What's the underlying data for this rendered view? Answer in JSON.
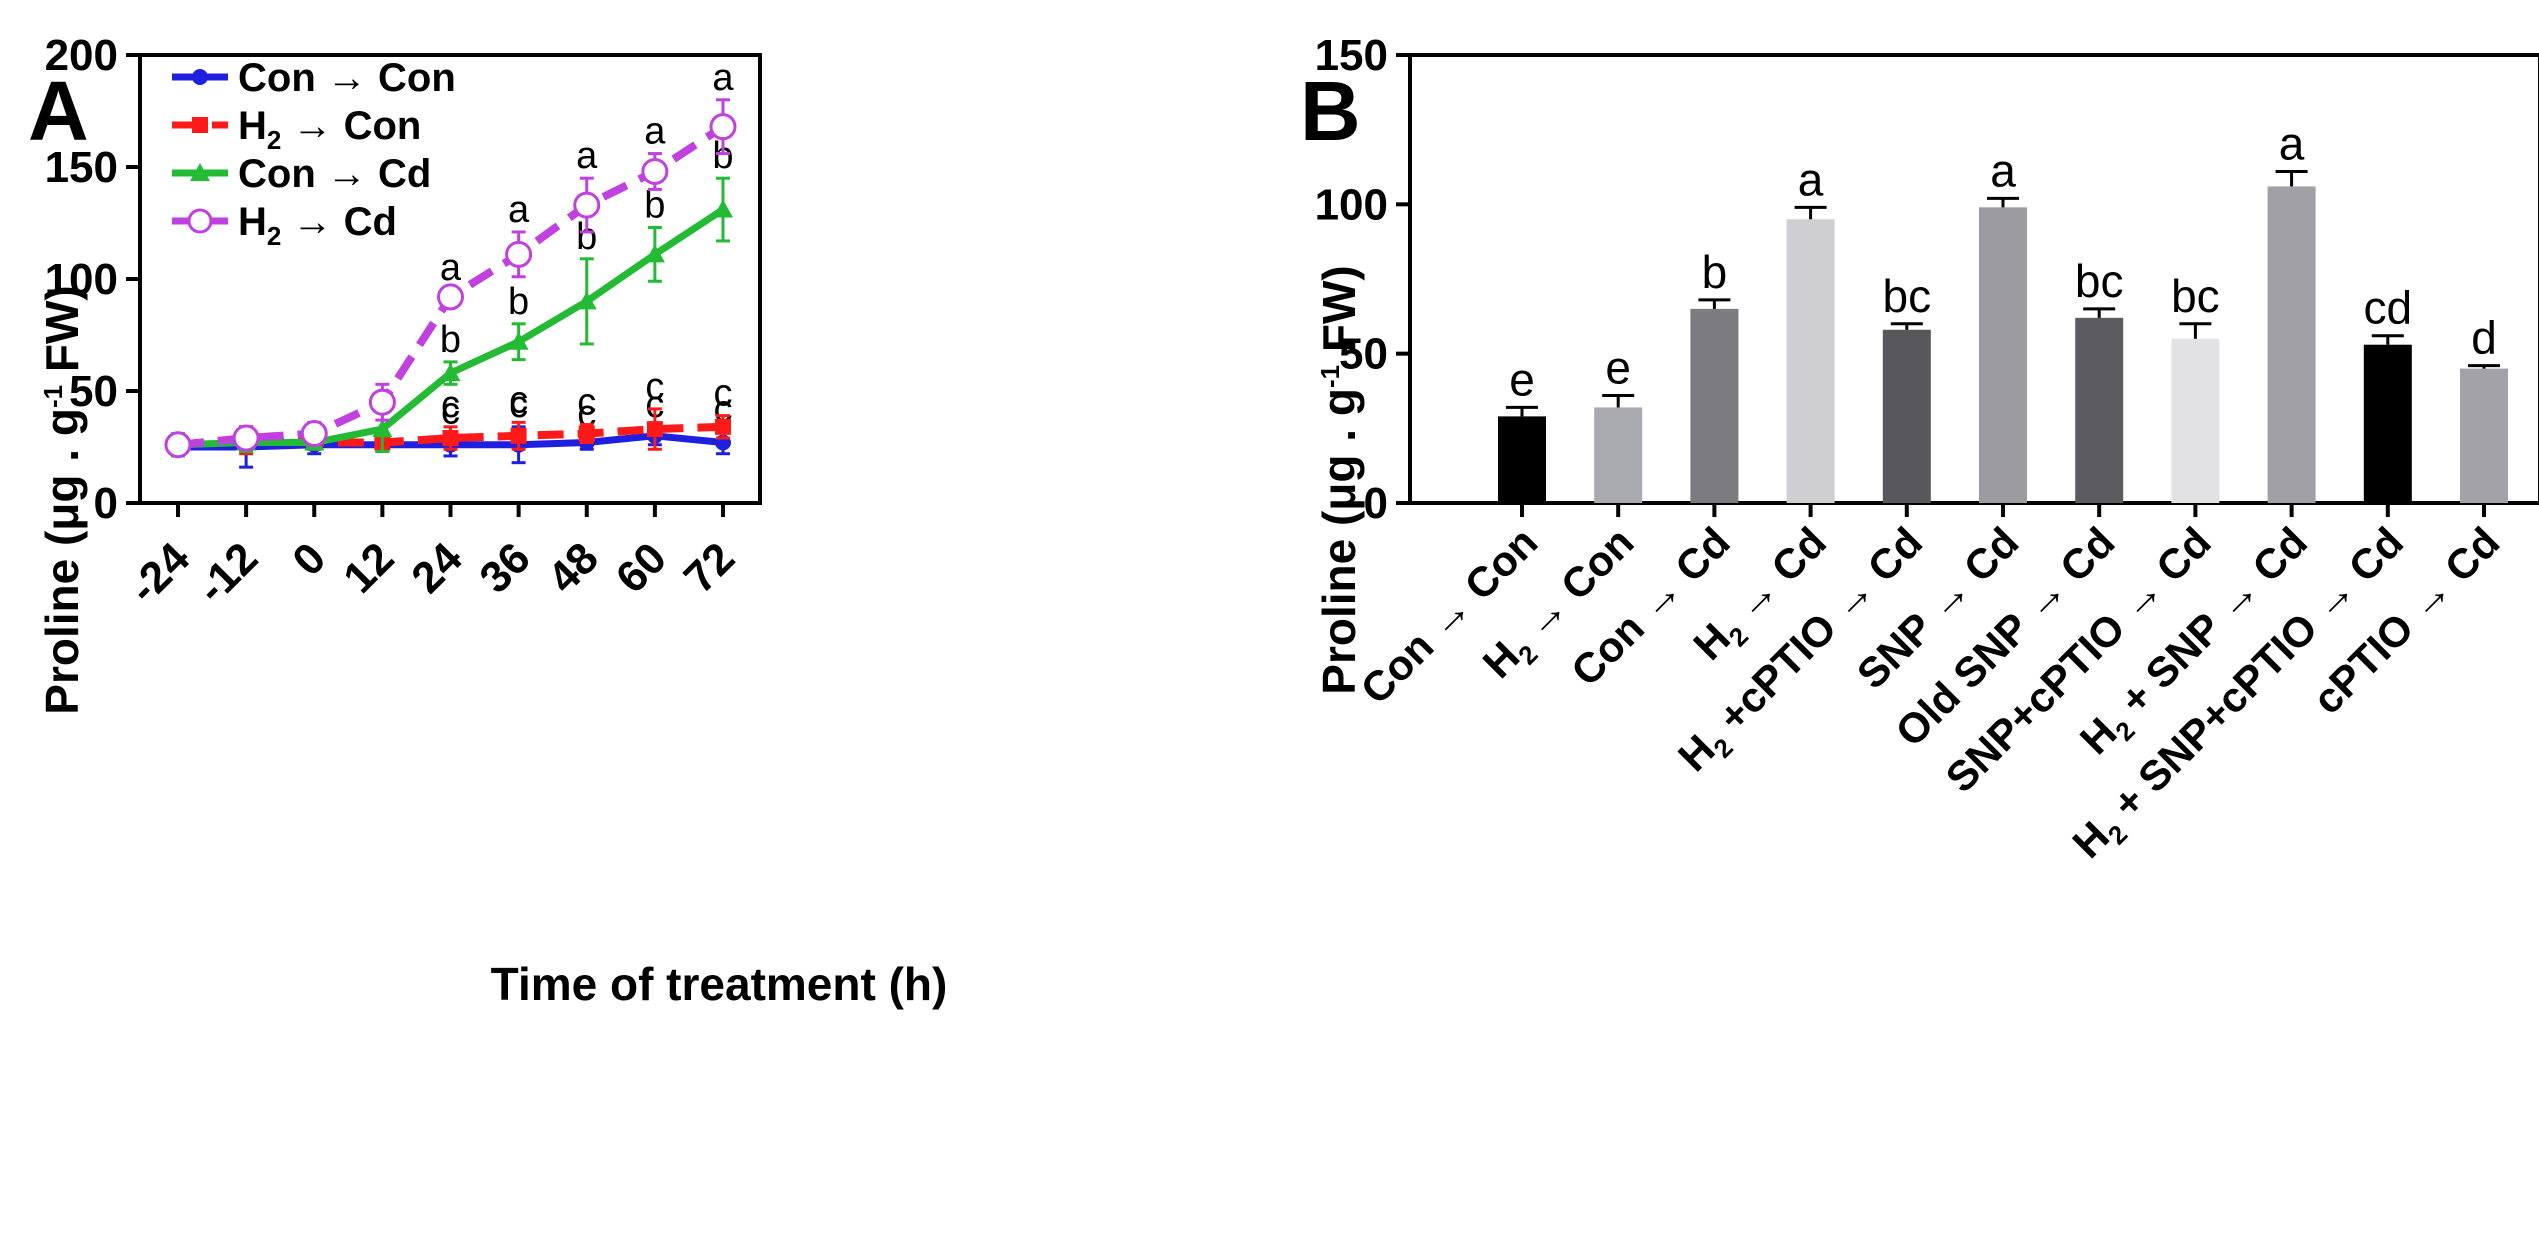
{
  "panel_a": {
    "letter": "A",
    "arrow": "→",
    "legend": [
      {
        "label_parts": [
          "Con",
          "→",
          "Con"
        ]
      },
      {
        "label_parts": [
          "H",
          "2",
          "→",
          "Con"
        ]
      },
      {
        "label_parts": [
          "Con",
          "→",
          "Cd"
        ]
      },
      {
        "label_parts": [
          "H",
          "2",
          "→",
          "Cd"
        ]
      }
    ],
    "ylabel_parts": [
      "Proline (μg . g",
      "-1",
      " FW)"
    ]
  },
  "panel_b": {
    "letter": "B",
    "ylabel_parts": [
      "Proline (μg . g",
      "-1",
      " FW)"
    ]
  },
  "colors": {
    "con_con": "#1f1fe0",
    "h2_con": "#ff1a1a",
    "con_cd": "#22bb33",
    "h2_cd": "#c040e0",
    "axis": "#000000"
  },
  "chart_data": [
    {
      "type": "line",
      "panel": "A",
      "title": "",
      "xlabel": "Time of treatment (h)",
      "ylabel": "Proline (μg . g-1 FW)",
      "x": [
        -24,
        -12,
        0,
        12,
        24,
        36,
        48,
        60,
        72
      ],
      "ylim": [
        0,
        200
      ],
      "yticks": [
        0,
        50,
        100,
        150,
        200
      ],
      "series": [
        {
          "name": "Con→Con",
          "color": "#1f1fe0",
          "dash": "solid",
          "marker": "circle-filled",
          "values": [
            25,
            25,
            26,
            26,
            26,
            26,
            27,
            30,
            27
          ],
          "errors": [
            4,
            9,
            4,
            3,
            5,
            8,
            3,
            4,
            5
          ],
          "letters": [
            "",
            "",
            "",
            "",
            "c",
            "c",
            "c",
            "c",
            "c"
          ]
        },
        {
          "name": "H2→Con",
          "color": "#ff1a1a",
          "dash": "dashed",
          "marker": "square-filled",
          "values": [
            26,
            28,
            27,
            27,
            29,
            30,
            31,
            33,
            34
          ],
          "errors": [
            4,
            6,
            3,
            3,
            5,
            6,
            4,
            9,
            5
          ],
          "letters": [
            "",
            "",
            "",
            "",
            "c",
            "c",
            "c",
            "c",
            "c"
          ]
        },
        {
          "name": "Con→Cd",
          "color": "#22bb33",
          "dash": "solid",
          "marker": "triangle-filled",
          "values": [
            26,
            27,
            27,
            33,
            58,
            72,
            90,
            111,
            131
          ],
          "errors": [
            5,
            4,
            3,
            10,
            5,
            8,
            19,
            12,
            14
          ],
          "letters": [
            "",
            "",
            "",
            "",
            "b",
            "b",
            "b",
            "b",
            "b"
          ]
        },
        {
          "name": "H2→Cd",
          "color": "#c040e0",
          "dash": "dashed",
          "marker": "circle-open",
          "values": [
            26,
            29,
            31,
            45,
            92,
            111,
            133,
            148,
            168
          ],
          "errors": [
            3,
            4,
            5,
            8,
            3,
            10,
            12,
            8,
            12
          ],
          "letters": [
            "",
            "",
            "",
            "",
            "a",
            "a",
            "a",
            "a",
            "a"
          ]
        }
      ]
    },
    {
      "type": "bar",
      "panel": "B",
      "title": "",
      "xlabel": "",
      "ylabel": "Proline (μg . g-1 FW)",
      "ylim": [
        0,
        150
      ],
      "yticks": [
        0,
        50,
        100,
        150
      ],
      "bars": [
        {
          "label_parts": [
            "Con",
            "→",
            "Con"
          ],
          "value": 29,
          "error": 3,
          "letter": "e",
          "color": "#000000"
        },
        {
          "label_parts": [
            "H",
            "2",
            "→",
            "Con"
          ],
          "value": 32,
          "error": 4,
          "letter": "e",
          "color": "#a9a9b0"
        },
        {
          "label_parts": [
            "Con",
            "→",
            "Cd"
          ],
          "value": 65,
          "error": 3,
          "letter": "b",
          "color": "#7c7c80"
        },
        {
          "label_parts": [
            "H",
            "2",
            "→",
            "Cd"
          ],
          "value": 95,
          "error": 4,
          "letter": "a",
          "color": "#cfcfd2"
        },
        {
          "label_parts": [
            "H",
            "2",
            "+cPTIO",
            "→",
            "Cd"
          ],
          "value": 58,
          "error": 2,
          "letter": "bc",
          "color": "#58585c"
        },
        {
          "label_parts": [
            "SNP",
            "→",
            "Cd"
          ],
          "value": 99,
          "error": 3,
          "letter": "a",
          "color": "#9c9ca0"
        },
        {
          "label_parts": [
            "Old SNP",
            "→",
            "Cd"
          ],
          "value": 62,
          "error": 3,
          "letter": "bc",
          "color": "#5c5c60"
        },
        {
          "label_parts": [
            "SNP+cPTIO",
            "→",
            "Cd"
          ],
          "value": 55,
          "error": 5,
          "letter": "bc",
          "color": "#e2e2e4"
        },
        {
          "label_parts": [
            "H",
            "2",
            "+ SNP",
            "→",
            "Cd"
          ],
          "value": 106,
          "error": 5,
          "letter": "a",
          "color": "#a0a0a6"
        },
        {
          "label_parts": [
            "H",
            "2",
            "+ SNP+cPTIO",
            "→",
            "Cd"
          ],
          "value": 53,
          "error": 3,
          "letter": "cd",
          "color": "#000000"
        },
        {
          "label_parts": [
            "cPTIO",
            "→",
            "Cd"
          ],
          "value": 45,
          "error": 1,
          "letter": "d",
          "color": "#a2a2a8"
        }
      ]
    }
  ]
}
